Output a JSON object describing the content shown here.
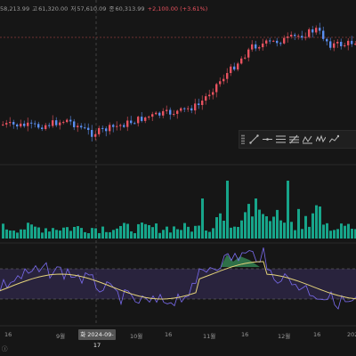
{
  "header": {
    "open": "58,213.99",
    "high_label": "고",
    "high": "61,320.00",
    "low_label": "저",
    "low": "57,610.09",
    "close_label": "종",
    "close": "60,313.99",
    "change": "+2,100.00 (+3.61%)"
  },
  "toolbar": {
    "tools": [
      {
        "icon": "trend-line-icon"
      },
      {
        "icon": "horizontal-line-icon"
      },
      {
        "icon": "fibonacci-icon"
      },
      {
        "icon": "pitchfork-icon"
      },
      {
        "icon": "pattern-icon"
      },
      {
        "icon": "elliott-wave-icon"
      },
      {
        "icon": "path-icon"
      }
    ]
  },
  "crosshair_date": "2024-09-17",
  "crosshair_date_prefix": "화",
  "x_axis": [
    {
      "label": "16"
    },
    {
      "label": "9월"
    },
    {
      "label": "16"
    },
    {
      "label": "10월"
    },
    {
      "label": "16"
    },
    {
      "label": "11월"
    },
    {
      "label": "16"
    },
    {
      "label": "12월"
    },
    {
      "label": "16"
    },
    {
      "label": "202"
    }
  ],
  "bottom_label": "ⓘ",
  "colors": {
    "up": "#e8525f",
    "down": "#5a8ef0",
    "volume": "#17a58a",
    "rsi_line": "#7b6cf0",
    "rsi_ma": "#e3d27a",
    "rsi_band": "#3a2f5e",
    "rsi_fill": "#3fae6a"
  },
  "chart_data": {
    "type": "candlestick",
    "ohlc": {
      "open": 58213.99,
      "high": 61320.0,
      "low": 57610.09,
      "close": 60313.99,
      "change": 2100.0,
      "change_pct": 3.61
    }
  }
}
